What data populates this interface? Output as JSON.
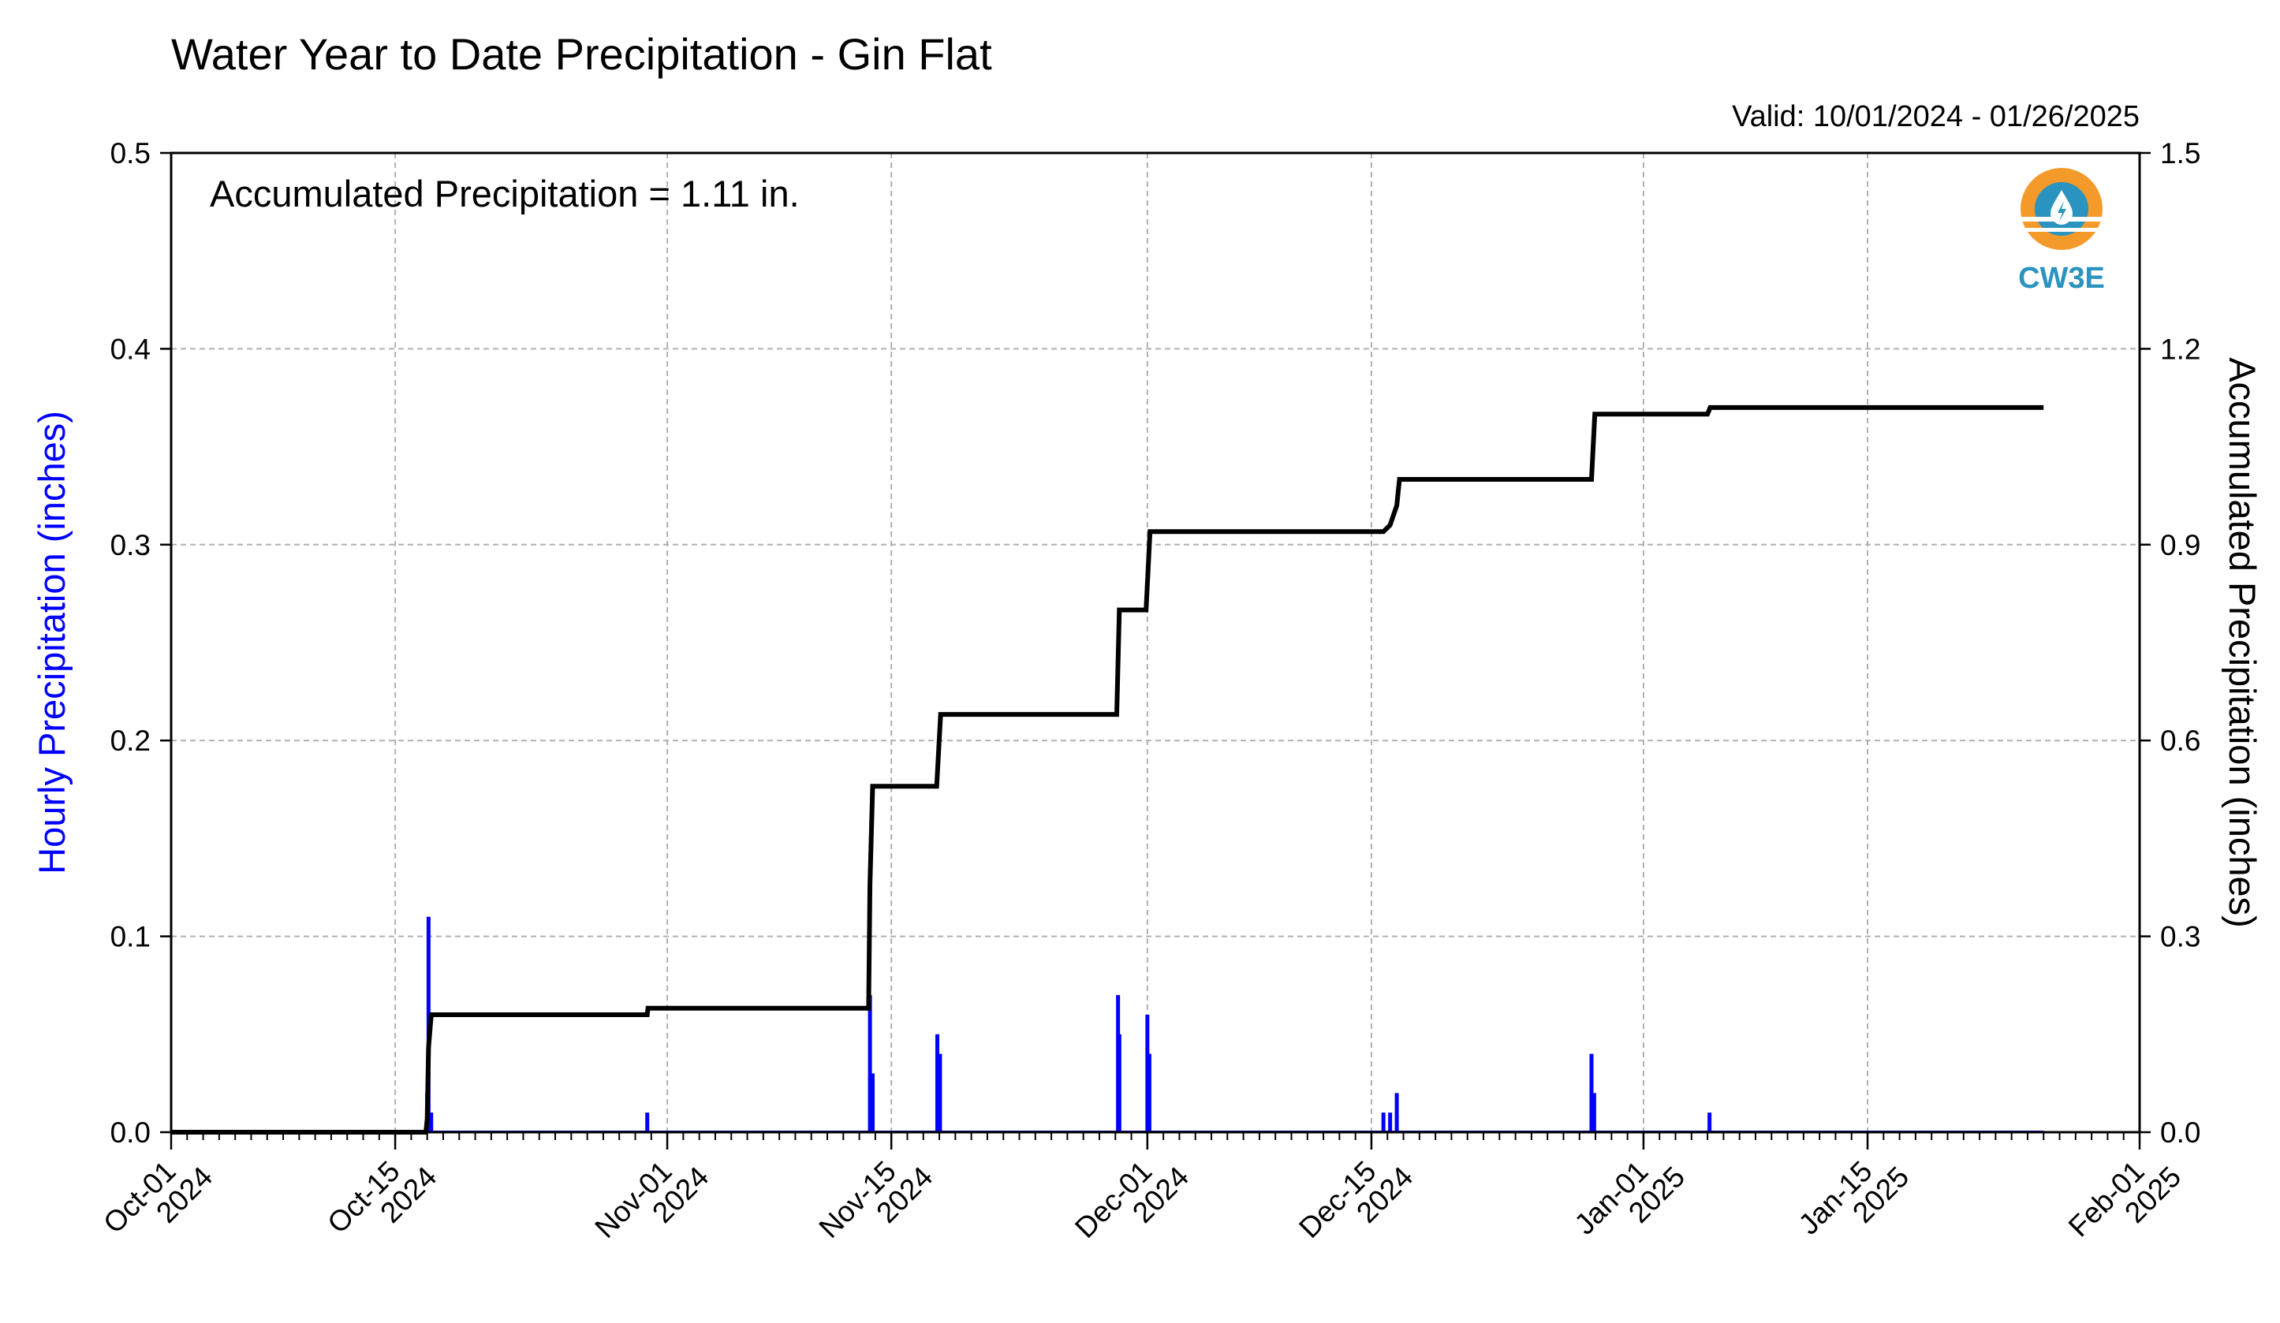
{
  "chart_data": {
    "type": "bar+line",
    "title": "Water Year to Date Precipitation - Gin Flat",
    "subtitle": "Valid: 10/01/2024 - 01/26/2025",
    "annotation": "Accumulated Precipitation = 1.11 in.",
    "ylabel_left": "Hourly Precipitation (inches)",
    "ylabel_right": "Accumulated Precipitation (inches)",
    "ylim_left": [
      0,
      0.5
    ],
    "ylim_right": [
      0,
      1.5
    ],
    "xlim": [
      "2024-10-01",
      "2025-02-01"
    ],
    "grid": true,
    "logo_text": "CW3E",
    "colors": {
      "hourly": "#0000ff",
      "accumulated": "#000000",
      "grid": "#b0b0b0",
      "logo_orange": "#f39a2b",
      "logo_blue": "#2a93bf"
    },
    "y_left_ticks": [
      {
        "value": 0.0,
        "label": "0.0"
      },
      {
        "value": 0.1,
        "label": "0.1"
      },
      {
        "value": 0.2,
        "label": "0.2"
      },
      {
        "value": 0.3,
        "label": "0.3"
      },
      {
        "value": 0.4,
        "label": "0.4"
      },
      {
        "value": 0.5,
        "label": "0.5"
      }
    ],
    "y_right_ticks": [
      {
        "value": 0.0,
        "label": "0.0"
      },
      {
        "value": 0.3,
        "label": "0.3"
      },
      {
        "value": 0.6,
        "label": "0.6"
      },
      {
        "value": 0.9,
        "label": "0.9"
      },
      {
        "value": 1.2,
        "label": "1.2"
      },
      {
        "value": 1.5,
        "label": "1.5"
      }
    ],
    "x_ticks": [
      {
        "date": "2024-10-01",
        "line1": "Oct-01",
        "line2": "2024"
      },
      {
        "date": "2024-10-15",
        "line1": "Oct-15",
        "line2": "2024"
      },
      {
        "date": "2024-11-01",
        "line1": "Nov-01",
        "line2": "2024"
      },
      {
        "date": "2024-11-15",
        "line1": "Nov-15",
        "line2": "2024"
      },
      {
        "date": "2024-12-01",
        "line1": "Dec-01",
        "line2": "2024"
      },
      {
        "date": "2024-12-15",
        "line1": "Dec-15",
        "line2": "2024"
      },
      {
        "date": "2025-01-01",
        "line1": "Jan-01",
        "line2": "2025"
      },
      {
        "date": "2025-01-15",
        "line1": "Jan-15",
        "line2": "2025"
      },
      {
        "date": "2025-02-01",
        "line1": "Feb-01",
        "line2": "2025"
      }
    ],
    "hourly_series": {
      "name": "Hourly Precipitation",
      "points": [
        {
          "x": "2024-10-17T00:00",
          "y": 0.02
        },
        {
          "x": "2024-10-17T02:00",
          "y": 0.11
        },
        {
          "x": "2024-10-17T06:00",
          "y": 0.01
        },
        {
          "x": "2024-10-30T18:00",
          "y": 0.01
        },
        {
          "x": "2024-11-13T16:00",
          "y": 0.07
        },
        {
          "x": "2024-11-13T20:00",
          "y": 0.03
        },
        {
          "x": "2024-11-17T21:00",
          "y": 0.05
        },
        {
          "x": "2024-11-18T01:00",
          "y": 0.04
        },
        {
          "x": "2024-11-29T04:00",
          "y": 0.07
        },
        {
          "x": "2024-11-29T06:00",
          "y": 0.05
        },
        {
          "x": "2024-12-01T00:00",
          "y": 0.06
        },
        {
          "x": "2024-12-01T03:00",
          "y": 0.04
        },
        {
          "x": "2024-12-15T18:00",
          "y": 0.01
        },
        {
          "x": "2024-12-16T04:00",
          "y": 0.01
        },
        {
          "x": "2024-12-16T14:00",
          "y": 0.02
        },
        {
          "x": "2024-12-28T18:00",
          "y": 0.04
        },
        {
          "x": "2024-12-28T22:00",
          "y": 0.02
        },
        {
          "x": "2025-01-05T03:00",
          "y": 0.01
        }
      ]
    },
    "accumulated_series": {
      "name": "Accumulated Precipitation",
      "points": [
        {
          "x": "2024-10-01T00:00",
          "y": 0.0
        },
        {
          "x": "2024-10-16T22:00",
          "y": 0.0
        },
        {
          "x": "2024-10-17T00:00",
          "y": 0.02
        },
        {
          "x": "2024-10-17T02:00",
          "y": 0.13
        },
        {
          "x": "2024-10-17T06:00",
          "y": 0.18
        },
        {
          "x": "2024-10-30T18:00",
          "y": 0.18
        },
        {
          "x": "2024-10-30T19:00",
          "y": 0.19
        },
        {
          "x": "2024-11-13T14:00",
          "y": 0.19
        },
        {
          "x": "2024-11-13T16:00",
          "y": 0.38
        },
        {
          "x": "2024-11-13T20:00",
          "y": 0.53
        },
        {
          "x": "2024-11-17T20:00",
          "y": 0.53
        },
        {
          "x": "2024-11-18T02:00",
          "y": 0.64
        },
        {
          "x": "2024-11-29T02:00",
          "y": 0.64
        },
        {
          "x": "2024-11-29T06:00",
          "y": 0.8
        },
        {
          "x": "2024-11-30T22:00",
          "y": 0.8
        },
        {
          "x": "2024-12-01T04:00",
          "y": 0.92
        },
        {
          "x": "2024-12-15T18:00",
          "y": 0.92
        },
        {
          "x": "2024-12-16T04:00",
          "y": 0.93
        },
        {
          "x": "2024-12-16T14:00",
          "y": 0.96
        },
        {
          "x": "2024-12-16T18:00",
          "y": 1.0
        },
        {
          "x": "2024-12-28T18:00",
          "y": 1.0
        },
        {
          "x": "2024-12-28T23:00",
          "y": 1.1
        },
        {
          "x": "2025-01-05T00:00",
          "y": 1.1
        },
        {
          "x": "2025-01-05T04:00",
          "y": 1.11
        },
        {
          "x": "2025-01-26T00:00",
          "y": 1.11
        }
      ]
    }
  }
}
